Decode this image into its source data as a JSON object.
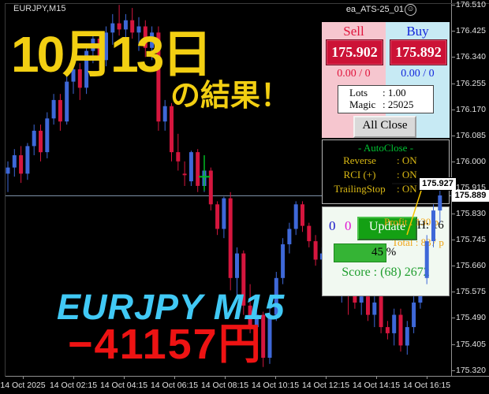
{
  "chart": {
    "symbol": "EURJPY,M15",
    "ea_name": "ea_ATS-25_01",
    "ea_status_icon": "☺",
    "bid_price": "175.889",
    "trailing_stop_price": "175.927",
    "y_axis_labels": [
      "176.510",
      "176.425",
      "176.340",
      "176.255",
      "176.170",
      "176.085",
      "176.000",
      "175.915",
      "175.830",
      "175.745",
      "175.660",
      "175.575",
      "175.490",
      "175.405",
      "175.320"
    ],
    "x_axis_labels": [
      "14 Oct 2025",
      "14 Oct 02:15",
      "14 Oct 04:15",
      "14 Oct 06:15",
      "14 Oct 08:15",
      "14 Oct 10:15",
      "14 Oct 12:15",
      "14 Oct 14:15",
      "14 Oct 16:15"
    ],
    "colors": {
      "bull": "#3e68d8",
      "bear": "#d5163e",
      "bid_line": "#7e91a8",
      "marker": "#00bb22",
      "trail_line": "#f5c500"
    }
  },
  "overlay_text": {
    "headline_line1": "10月13日",
    "headline_line2": "の結果！",
    "symbol_big": "EURJPY M15",
    "result_big": "−41157円"
  },
  "trade_panel": {
    "sell_header": "Sell",
    "buy_header": "Buy",
    "sell_price": "175.902",
    "buy_price": "175.892",
    "sell_stats": "0.00 / 0",
    "buy_stats": "0.00 / 0",
    "lots_label": "Lots",
    "lots_value": ": 1.00",
    "magic_label": "Magic",
    "magic_value": ": 25025",
    "all_close_label": "All Close"
  },
  "autoclose_panel": {
    "title": "- AutoClose -",
    "rows": [
      {
        "label": "Reverse",
        "value": ": ON"
      },
      {
        "label": "RCI (+)",
        "value": ": ON"
      },
      {
        "label": "TrailingStop",
        "value": ": ON"
      }
    ]
  },
  "update_panel": {
    "count_left": "0",
    "count_right": "0",
    "update_label": "Update",
    "profit_text": "Profit : 130 p",
    "hours_text": "H: 16",
    "total_text": "Total : 837 p",
    "percent_text": "45 %",
    "percent_value": 45,
    "score_text": "Score : (68) 2672"
  },
  "chart_data": {
    "type": "candlestick",
    "symbol": "EURJPY",
    "timeframe": "M15",
    "start_time": "14 Oct 00:15",
    "interval_minutes": 15,
    "price_axis_range": [
      175.32,
      176.51
    ],
    "bid": 175.889,
    "trailing_stop": 175.927,
    "signal_marker": {
      "bar": 30,
      "price": 175.95,
      "wick_high": 176.02,
      "wick_low": 175.905
    },
    "candles": [
      [
        175.96,
        176.0,
        175.9,
        175.98
      ],
      [
        175.98,
        176.04,
        175.95,
        176.02
      ],
      [
        176.02,
        176.05,
        175.93,
        175.96
      ],
      [
        175.96,
        176.06,
        175.94,
        176.05
      ],
      [
        176.05,
        176.12,
        176.02,
        176.1
      ],
      [
        176.1,
        176.12,
        176.0,
        176.03
      ],
      [
        176.03,
        176.16,
        176.01,
        176.14
      ],
      [
        176.14,
        176.22,
        176.12,
        176.2
      ],
      [
        176.2,
        176.22,
        176.1,
        176.13
      ],
      [
        176.13,
        176.28,
        176.12,
        176.26
      ],
      [
        176.26,
        176.32,
        176.22,
        176.3
      ],
      [
        176.3,
        176.32,
        176.2,
        176.24
      ],
      [
        176.24,
        176.38,
        176.22,
        176.36
      ],
      [
        176.36,
        176.42,
        176.32,
        176.4
      ],
      [
        176.4,
        176.42,
        176.3,
        176.33
      ],
      [
        176.33,
        176.44,
        176.31,
        176.42
      ],
      [
        176.42,
        176.48,
        176.38,
        176.45
      ],
      [
        176.45,
        176.51,
        176.41,
        176.43
      ],
      [
        176.43,
        176.48,
        176.38,
        176.46
      ],
      [
        176.46,
        176.5,
        176.4,
        176.42
      ],
      [
        176.42,
        176.47,
        176.36,
        176.44
      ],
      [
        176.44,
        176.46,
        176.34,
        176.37
      ],
      [
        176.37,
        176.44,
        176.33,
        176.42
      ],
      [
        176.42,
        176.44,
        176.1,
        176.13
      ],
      [
        176.13,
        176.2,
        176.1,
        176.18
      ],
      [
        176.18,
        176.19,
        176.0,
        176.03
      ],
      [
        176.03,
        176.09,
        175.97,
        176.0
      ],
      [
        175.96,
        176.0,
        175.92,
        175.955
      ],
      [
        175.935,
        176.035,
        175.92,
        176.03
      ],
      [
        176.03,
        176.04,
        175.9,
        175.92
      ],
      [
        175.92,
        175.99,
        175.9,
        175.97
      ],
      [
        175.97,
        175.98,
        175.84,
        175.86
      ],
      [
        175.86,
        175.87,
        175.76,
        175.78
      ],
      [
        175.78,
        175.885,
        175.75,
        175.88
      ],
      [
        175.88,
        175.9,
        175.58,
        175.62
      ],
      [
        175.62,
        175.72,
        175.55,
        175.7
      ],
      [
        175.7,
        175.71,
        175.5,
        175.53
      ],
      [
        175.53,
        175.6,
        175.44,
        175.46
      ],
      [
        175.46,
        175.52,
        175.4,
        175.5
      ],
      [
        175.5,
        175.51,
        175.33,
        175.36
      ],
      [
        175.36,
        175.52,
        175.34,
        175.5
      ],
      [
        175.5,
        175.64,
        175.48,
        175.62
      ],
      [
        175.62,
        175.75,
        175.6,
        175.73
      ],
      [
        175.73,
        175.8,
        175.7,
        175.78
      ],
      [
        175.78,
        175.87,
        175.76,
        175.86
      ],
      [
        175.86,
        175.87,
        175.77,
        175.79
      ],
      [
        175.79,
        175.8,
        175.72,
        175.74
      ],
      [
        175.74,
        175.76,
        175.66,
        175.68
      ],
      [
        175.68,
        175.72,
        175.62,
        175.7
      ],
      [
        175.7,
        175.71,
        175.6,
        175.62
      ],
      [
        175.62,
        175.66,
        175.56,
        175.58
      ],
      [
        175.58,
        175.62,
        175.54,
        175.6
      ],
      [
        175.6,
        175.62,
        175.5,
        175.57
      ],
      [
        175.57,
        175.6,
        175.52,
        175.54
      ],
      [
        175.54,
        175.58,
        175.5,
        175.56
      ],
      [
        175.56,
        175.58,
        175.48,
        175.5
      ],
      [
        175.5,
        175.56,
        175.46,
        175.54
      ],
      [
        175.56,
        175.57,
        175.44,
        175.46
      ],
      [
        175.46,
        175.48,
        175.42,
        175.44
      ],
      [
        175.44,
        175.52,
        175.4,
        175.5
      ],
      [
        175.5,
        175.52,
        175.38,
        175.4
      ],
      [
        175.4,
        175.48,
        175.37,
        175.46
      ],
      [
        175.46,
        175.56,
        175.44,
        175.54
      ],
      [
        175.54,
        175.64,
        175.52,
        175.62
      ],
      [
        175.62,
        175.76,
        175.6,
        175.74
      ],
      [
        175.74,
        175.86,
        175.72,
        175.84
      ],
      [
        175.84,
        175.93,
        175.8,
        175.889
      ]
    ]
  }
}
